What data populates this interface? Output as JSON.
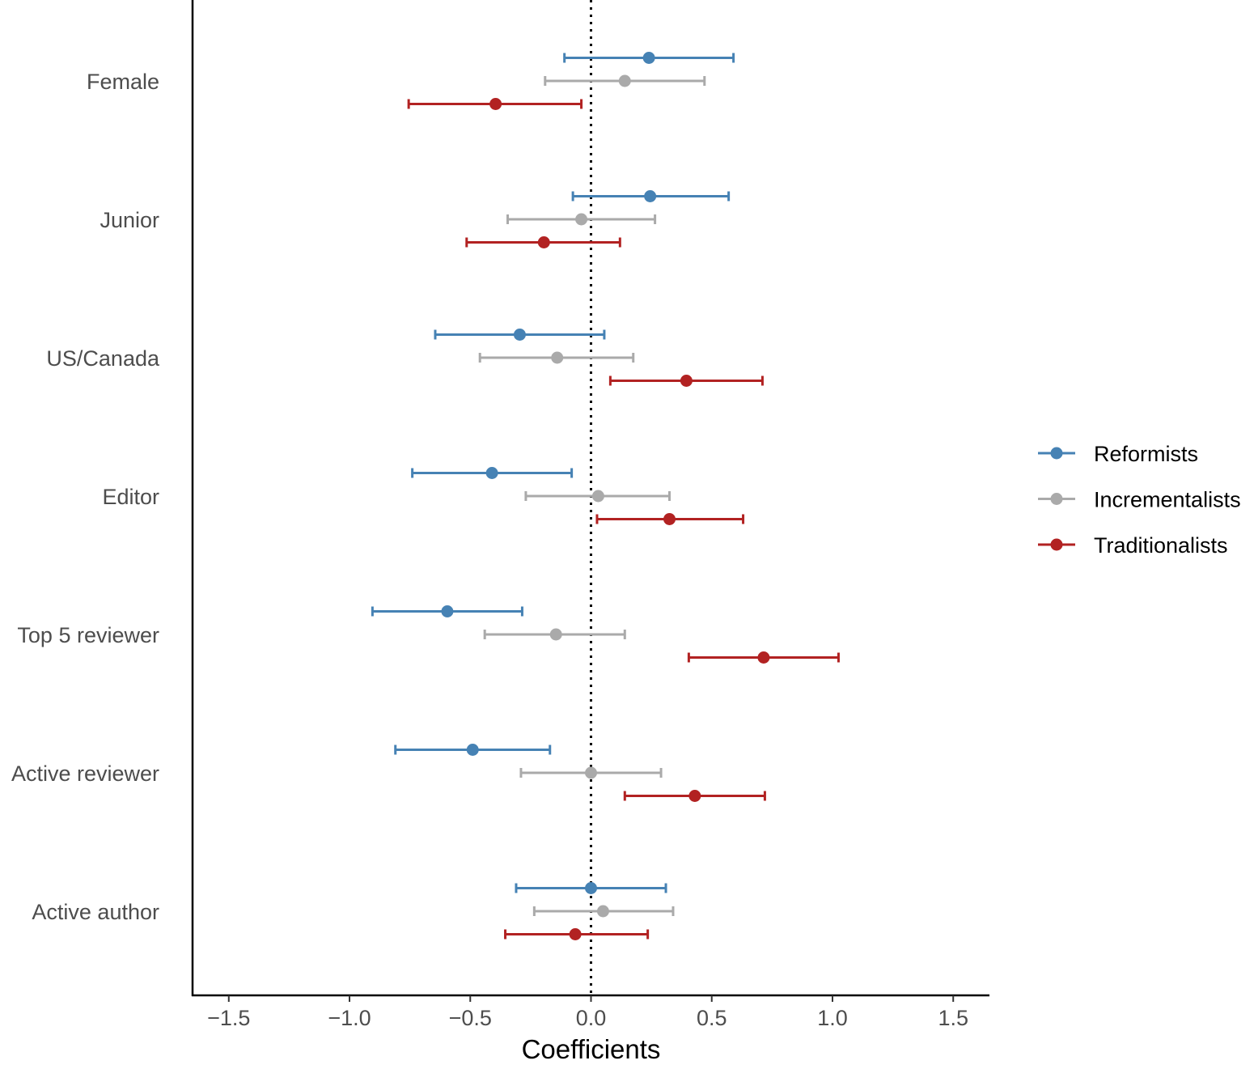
{
  "chart_data": {
    "type": "scatter",
    "subtype": "coefficient-plot-with-error-bars",
    "title": "",
    "xlabel": "Coefficients",
    "ylabel": "",
    "xlim": [
      -1.65,
      1.65
    ],
    "xticks": [
      -1.5,
      -1.0,
      -0.5,
      0.0,
      0.5,
      1.0,
      1.5
    ],
    "xtick_labels": [
      "−1.5",
      "−1.0",
      "−0.5",
      "0.0",
      "0.5",
      "1.0",
      "1.5"
    ],
    "reference_line": {
      "x": 0.0,
      "style": "dotted",
      "color": "#000000"
    },
    "grid": false,
    "legend": {
      "position": "right"
    },
    "categories": [
      "Female",
      "Junior",
      "US/Canada",
      "Editor",
      "Top 5 reviewer",
      "Active reviewer",
      "Active author"
    ],
    "series": [
      {
        "name": "Reformists",
        "color": "#4682b4",
        "estimate": [
          0.24,
          0.245,
          -0.295,
          -0.41,
          -0.595,
          -0.49,
          0.0
        ],
        "lower": [
          -0.11,
          -0.075,
          -0.645,
          -0.74,
          -0.905,
          -0.81,
          -0.31
        ],
        "upper": [
          0.59,
          0.57,
          0.055,
          -0.08,
          -0.285,
          -0.17,
          0.31
        ]
      },
      {
        "name": "Incrementalists",
        "color": "#aaaaaa",
        "estimate": [
          0.14,
          -0.04,
          -0.14,
          0.03,
          -0.145,
          0.0,
          0.05
        ],
        "lower": [
          -0.19,
          -0.345,
          -0.46,
          -0.27,
          -0.44,
          -0.29,
          -0.235
        ],
        "upper": [
          0.47,
          0.265,
          0.175,
          0.325,
          0.14,
          0.29,
          0.34
        ]
      },
      {
        "name": "Traditionalists",
        "color": "#b22222",
        "estimate": [
          -0.395,
          -0.195,
          0.395,
          0.325,
          0.715,
          0.43,
          -0.065
        ],
        "lower": [
          -0.755,
          -0.515,
          0.08,
          0.025,
          0.405,
          0.14,
          -0.355
        ],
        "upper": [
          -0.04,
          0.12,
          0.71,
          0.63,
          1.025,
          0.72,
          0.235
        ]
      }
    ]
  }
}
